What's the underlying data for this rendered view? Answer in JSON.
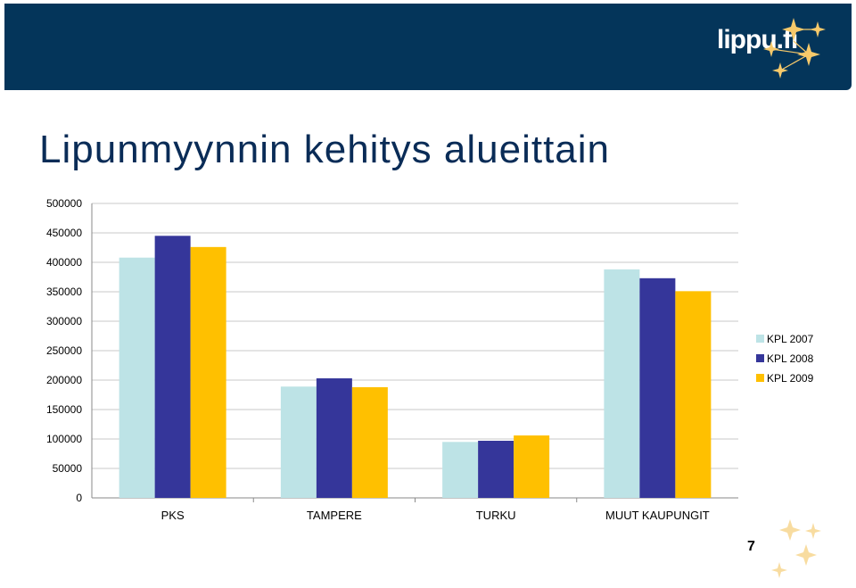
{
  "header": {
    "logo_text": "lippu.fi",
    "logo_icon": "star-cluster-icon",
    "background_color": "#04355a"
  },
  "slide": {
    "title": "Lipunmyynnin kehitys alueittain",
    "page_number": "7"
  },
  "chart_data": {
    "type": "bar",
    "categories": [
      "PKS",
      "TAMPERE",
      "TURKU",
      "MUUT KAUPUNGIT"
    ],
    "series": [
      {
        "name": "KPL 2007",
        "color": "#bde3e6",
        "values": [
          408000,
          189000,
          95000,
          388000
        ]
      },
      {
        "name": "KPL 2008",
        "color": "#35369a",
        "values": [
          445000,
          203000,
          97000,
          373000
        ]
      },
      {
        "name": "KPL 2009",
        "color": "#ffc000",
        "values": [
          426000,
          188000,
          106000,
          351000
        ]
      }
    ],
    "ylim": [
      0,
      500000
    ],
    "yticks": [
      "0",
      "50000",
      "100000",
      "150000",
      "200000",
      "250000",
      "300000",
      "350000",
      "400000",
      "450000",
      "500000"
    ],
    "grid": true,
    "legend": "right",
    "title": "",
    "xlabel": "",
    "ylabel": ""
  }
}
